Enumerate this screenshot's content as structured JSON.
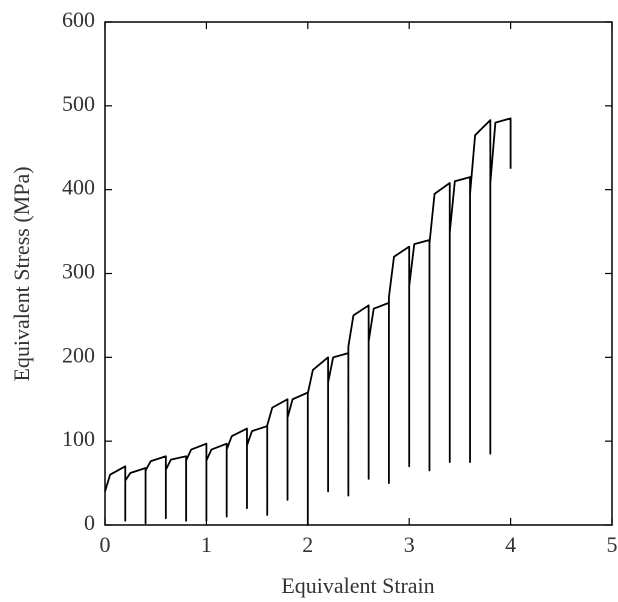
{
  "chart_data": {
    "type": "line",
    "xlabel": "Equivalent Strain",
    "ylabel": "Equivalent Stress (MPa)",
    "x": [
      0,
      0.05,
      0.2,
      0.2,
      0.2,
      0.25,
      0.4,
      0.4,
      0.4,
      0.45,
      0.6,
      0.6,
      0.6,
      0.65,
      0.8,
      0.8,
      0.8,
      0.85,
      1.0,
      1.0,
      1.0,
      1.05,
      1.2,
      1.2,
      1.2,
      1.25,
      1.4,
      1.4,
      1.4,
      1.45,
      1.6,
      1.6,
      1.6,
      1.65,
      1.8,
      1.8,
      1.8,
      1.85,
      2.0,
      2.0,
      2.0,
      2.05,
      2.2,
      2.2,
      2.2,
      2.25,
      2.4,
      2.4,
      2.4,
      2.45,
      2.6,
      2.6,
      2.6,
      2.65,
      2.8,
      2.8,
      2.8,
      2.85,
      3.0,
      3.0,
      3.0,
      3.05,
      3.2,
      3.2,
      3.2,
      3.25,
      3.4,
      3.4,
      3.4,
      3.45,
      3.6,
      3.6,
      3.6,
      3.65,
      3.8,
      3.8,
      3.8,
      3.85,
      4.0,
      4.0
    ],
    "values": [
      40,
      60,
      70,
      5,
      53,
      62,
      68,
      2,
      65,
      76,
      82,
      8,
      66,
      78,
      82,
      5,
      77,
      90,
      97,
      5,
      77,
      90,
      97,
      10,
      90,
      106,
      115,
      20,
      95,
      112,
      118,
      12,
      119,
      140,
      150,
      30,
      128,
      150,
      158,
      0,
      157,
      185,
      200,
      40,
      170,
      200,
      205,
      35,
      213,
      250,
      262,
      55,
      219,
      258,
      265,
      50,
      272,
      320,
      332,
      70,
      285,
      335,
      340,
      65,
      336,
      395,
      408,
      75,
      349,
      410,
      415,
      75,
      395,
      465,
      483,
      85,
      408,
      480,
      485,
      425
    ],
    "color": "#000000",
    "xlim": [
      0,
      5
    ],
    "xticks": [
      0,
      1,
      2,
      3,
      4,
      5
    ],
    "ylim": [
      0,
      600
    ],
    "yticks": [
      0,
      100,
      200,
      300,
      400,
      500,
      600
    ],
    "grid": false
  }
}
